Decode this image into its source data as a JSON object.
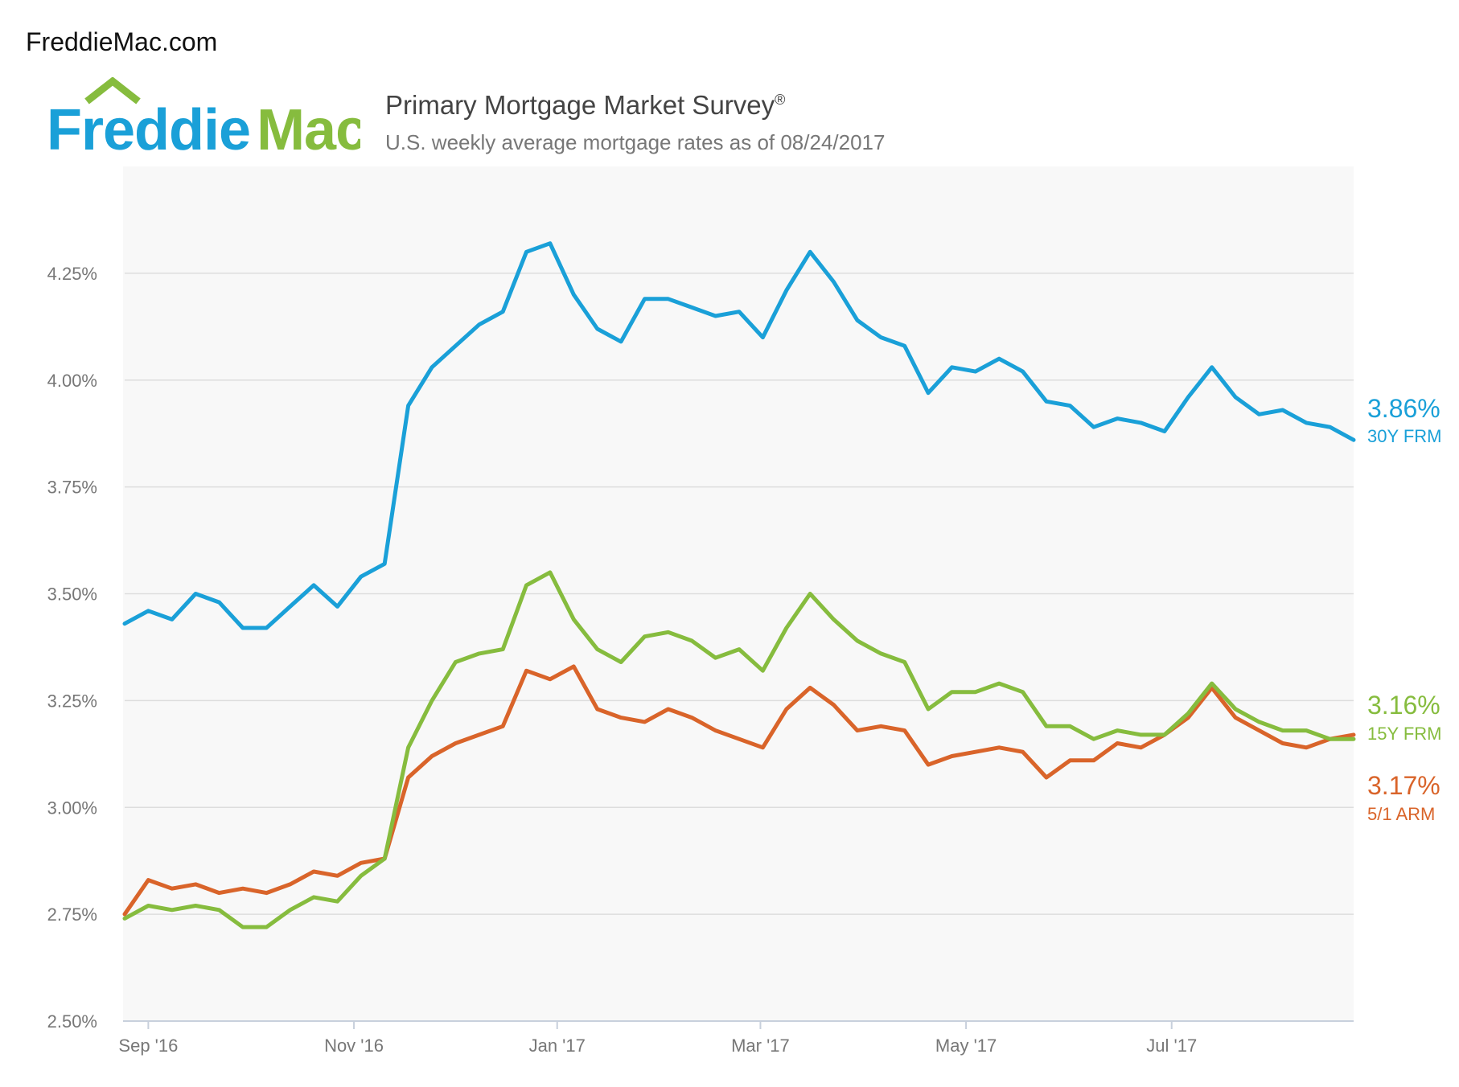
{
  "header": {
    "site": "FreddieMac.com",
    "logo_part1": "Freddie",
    "logo_part2": "Mac",
    "title": "Primary Mortgage Market Survey",
    "title_mark": "®",
    "subtitle": "U.S. weekly average mortgage rates as of 08/24/2017"
  },
  "colors": {
    "frm30": "#1aa0d8",
    "frm15": "#86bc3e",
    "arm51": "#d9642a",
    "logo_blue": "#1aa0d8",
    "logo_green": "#86bc3e"
  },
  "chart_data": {
    "type": "line",
    "title": "Primary Mortgage Market Survey®",
    "subtitle": "U.S. weekly average mortgage rates as of 08/24/2017",
    "x_ticks": [
      "Sep '16",
      "Nov '16",
      "Jan '17",
      "Mar '17",
      "May '17",
      "Jul '17"
    ],
    "y_ticks": [
      "2.50%",
      "2.75%",
      "3.00%",
      "3.25%",
      "3.50%",
      "3.75%",
      "4.00%",
      "4.25%"
    ],
    "ylim": [
      2.5,
      4.5
    ],
    "grid": true,
    "series": [
      {
        "name": "30Y FRM",
        "end_label": "3.86%",
        "color": "#1aa0d8",
        "values": [
          3.43,
          3.46,
          3.44,
          3.5,
          3.48,
          3.42,
          3.42,
          3.47,
          3.52,
          3.47,
          3.54,
          3.57,
          3.94,
          4.03,
          4.08,
          4.13,
          4.16,
          4.3,
          4.32,
          4.2,
          4.12,
          4.09,
          4.19,
          4.19,
          4.17,
          4.15,
          4.16,
          4.1,
          4.21,
          4.3,
          4.23,
          4.14,
          4.1,
          4.08,
          3.97,
          4.03,
          4.02,
          4.05,
          4.02,
          3.95,
          3.94,
          3.89,
          3.91,
          3.9,
          3.88,
          3.96,
          4.03,
          3.96,
          3.92,
          3.93,
          3.9,
          3.89,
          3.86
        ]
      },
      {
        "name": "15Y FRM",
        "end_label": "3.16%",
        "color": "#86bc3e",
        "values": [
          2.74,
          2.77,
          2.76,
          2.77,
          2.76,
          2.72,
          2.72,
          2.76,
          2.79,
          2.78,
          2.84,
          2.88,
          3.14,
          3.25,
          3.34,
          3.36,
          3.37,
          3.52,
          3.55,
          3.44,
          3.37,
          3.34,
          3.4,
          3.41,
          3.39,
          3.35,
          3.37,
          3.32,
          3.42,
          3.5,
          3.44,
          3.39,
          3.36,
          3.34,
          3.23,
          3.27,
          3.27,
          3.29,
          3.27,
          3.19,
          3.19,
          3.16,
          3.18,
          3.17,
          3.17,
          3.22,
          3.29,
          3.23,
          3.2,
          3.18,
          3.18,
          3.16,
          3.16
        ]
      },
      {
        "name": "5/1 ARM",
        "end_label": "3.17%",
        "color": "#d9642a",
        "values": [
          2.75,
          2.83,
          2.81,
          2.82,
          2.8,
          2.81,
          2.8,
          2.82,
          2.85,
          2.84,
          2.87,
          2.88,
          3.07,
          3.12,
          3.15,
          3.17,
          3.19,
          3.32,
          3.3,
          3.33,
          3.23,
          3.21,
          3.2,
          3.23,
          3.21,
          3.18,
          3.16,
          3.14,
          3.23,
          3.28,
          3.24,
          3.18,
          3.19,
          3.18,
          3.1,
          3.12,
          3.13,
          3.14,
          3.13,
          3.07,
          3.11,
          3.11,
          3.15,
          3.14,
          3.17,
          3.21,
          3.28,
          3.21,
          3.18,
          3.15,
          3.14,
          3.16,
          3.17
        ]
      }
    ]
  }
}
